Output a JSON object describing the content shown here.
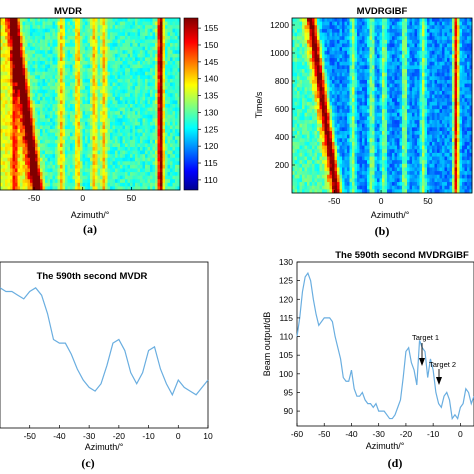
{
  "chart_data": [
    {
      "type": "heatmap",
      "panel_label": "(a)",
      "title": "MVDR",
      "xlabel": "Azimuth/°",
      "x_ticks": [
        "-50",
        "0",
        "50"
      ],
      "colorbar": {
        "ticks": [
          "155",
          "150",
          "145",
          "140",
          "135",
          "130",
          "125",
          "120",
          "115",
          "110"
        ],
        "range": [
          107,
          158
        ]
      },
      "ridges_azimuth_deg": [
        -70,
        -22,
        -5,
        12,
        22,
        80
      ],
      "target_track": {
        "start_azimuth": -72,
        "end_azimuth": -47
      }
    },
    {
      "type": "heatmap",
      "panel_label": "(b)",
      "title": "MVDRGIBF",
      "xlabel": "Azimuth/°",
      "ylabel": "Time/s",
      "x_ticks": [
        "-50",
        "0",
        "50"
      ],
      "y_ticks": [
        "1200",
        "1000",
        "800",
        "600",
        "400",
        "200"
      ],
      "ridges_azimuth_deg": [
        -30,
        -10,
        3,
        25,
        45,
        80
      ],
      "target_track": {
        "start_azimuth": -75,
        "end_azimuth": -48
      }
    },
    {
      "type": "line",
      "panel_label": "(c)",
      "title": "The 590th second MVDR",
      "xlabel": "Azimuth/°",
      "x_ticks": [
        "-50",
        "-40",
        "-30",
        "-20",
        "-10",
        "0",
        "10"
      ],
      "xlim": [
        -60,
        10
      ],
      "ylim": [
        86,
        131
      ],
      "x": [
        -60,
        -58,
        -56,
        -54,
        -52,
        -50,
        -48,
        -46,
        -44,
        -42,
        -40,
        -38,
        -36,
        -34,
        -32,
        -30,
        -28,
        -26,
        -24,
        -22,
        -20,
        -18,
        -16,
        -14,
        -12,
        -10,
        -8,
        -6,
        -4,
        -2,
        0,
        2,
        4,
        6,
        8,
        10
      ],
      "series": [
        {
          "values": [
            124,
            123,
            123,
            122,
            121,
            123,
            124,
            122,
            117,
            110,
            109,
            109,
            106,
            102,
            99,
            97,
            96,
            98,
            103,
            109,
            110,
            107,
            101,
            98,
            101,
            107,
            108,
            102,
            98,
            95,
            99,
            97,
            96,
            95,
            97,
            99
          ]
        }
      ]
    },
    {
      "type": "line",
      "panel_label": "(d)",
      "title": "The 590th second MVDRGIBF",
      "xlabel": "Azimuth/°",
      "ylabel": "Beam output/dB",
      "x_ticks": [
        "-60",
        "-50",
        "-40",
        "-30",
        "-20",
        "-10",
        "0"
      ],
      "y_ticks": [
        "130",
        "125",
        "120",
        "115",
        "110",
        "105",
        "100",
        "95",
        "90"
      ],
      "xlim": [
        -60,
        5
      ],
      "ylim": [
        86,
        130
      ],
      "x": [
        -60,
        -59,
        -58,
        -57,
        -56,
        -55,
        -54,
        -53,
        -52,
        -51,
        -50,
        -49,
        -48,
        -47,
        -46,
        -45,
        -44,
        -43,
        -42,
        -41,
        -40,
        -39,
        -38,
        -37,
        -36,
        -35,
        -34,
        -33,
        -32,
        -31,
        -30,
        -29,
        -28,
        -27,
        -26,
        -25,
        -24,
        -23,
        -22,
        -21,
        -20,
        -19,
        -18,
        -17,
        -16,
        -15,
        -14,
        -13,
        -12,
        -11,
        -10,
        -9,
        -8,
        -7,
        -6,
        -5,
        -4,
        -3,
        -2,
        -1,
        0,
        1,
        2,
        3,
        4,
        5
      ],
      "series": [
        {
          "values": [
            110,
            115,
            122,
            126,
            127,
            125,
            120,
            116,
            113,
            114,
            115,
            115,
            115,
            114,
            110,
            107,
            104,
            99,
            98,
            98,
            101,
            96,
            94,
            94,
            95,
            93,
            92,
            92,
            91,
            92,
            90,
            90,
            90,
            89,
            88,
            88,
            89,
            91,
            93,
            99,
            106,
            107,
            103,
            101,
            97,
            109,
            107,
            106,
            99,
            104,
            101,
            95,
            92,
            91,
            94,
            95,
            93,
            88,
            89,
            88,
            91,
            92,
            96,
            95,
            92,
            94
          ]
        }
      ],
      "annotations": [
        {
          "label": "Target 1",
          "x": -18,
          "y": 110
        },
        {
          "label": "Target 2",
          "x": -14,
          "y": 101
        }
      ]
    }
  ]
}
